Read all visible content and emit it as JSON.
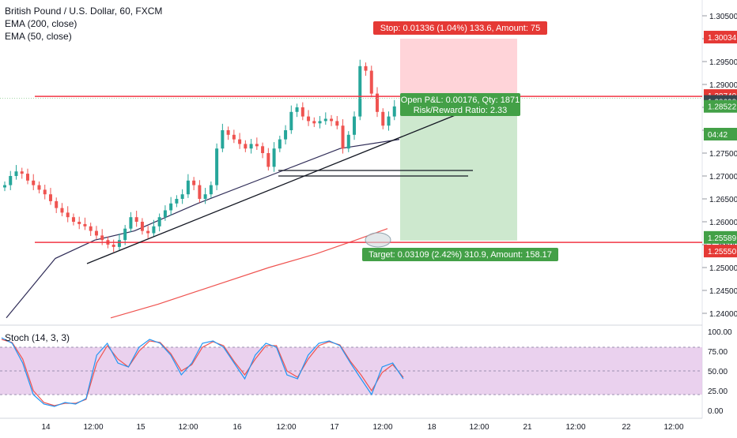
{
  "legend": {
    "title": "British Pound / U.S. Dollar, 60, FXCM",
    "ema200": "EMA (200, close)",
    "ema50": "EMA (50, close)"
  },
  "stoch_label": "Stoch (14, 3, 3)",
  "trade": {
    "stop_label": "Stop: 0.01336 (1.04%) 133.6, Amount: 75",
    "pnl_line1": "Open P&L: 0.00176, Qty: 1871",
    "pnl_line2": "Risk/Reward Ratio: 2.33",
    "target_label": "Target: 0.03109 (2.42%) 310.9, Amount: 158.17",
    "stop_price": 1.30034,
    "entry_price": 1.28698,
    "target_price": 1.25589
  },
  "price_badges": {
    "stop": "1.30034",
    "resistance": "1.28740",
    "entry": "1.28698",
    "last": "1.28522",
    "countdown": "04:42",
    "target": "1.25589",
    "support": "1.25550"
  },
  "horizontal_levels": {
    "resistance": 1.2874,
    "support": 1.2555
  },
  "colors": {
    "up": "#26a69a",
    "down": "#ef5350",
    "ema200": "#ef5350",
    "ema50": "#2f2c57",
    "stop_zone": "#ffcdd2",
    "target_zone": "#c8e6c9",
    "stoch_k": "#2196f3",
    "stoch_d": "#ef5350",
    "stoch_band": "#e1bee7",
    "badge_red": "#e53935",
    "badge_green": "#43a047",
    "badge_dark": "#37474f"
  },
  "chart_data": [
    {
      "type": "candlestick",
      "title": "British Pound / U.S. Dollar, 60, FXCM",
      "ylim": [
        1.238,
        1.3065
      ],
      "y_ticks": [
        "1.30500",
        "1.30000",
        "1.29500",
        "1.29000",
        "1.28500",
        "1.28000",
        "1.27500",
        "1.27000",
        "1.26500",
        "1.26000",
        "1.25500",
        "1.25000",
        "1.24500",
        "1.24000"
      ],
      "x_ticks": [
        "14",
        "12:00",
        "15",
        "12:00",
        "16",
        "12:00",
        "17",
        "12:00",
        "18",
        "12:00",
        "21",
        "12:00",
        "22",
        "12:00"
      ],
      "ohlc_closes": [
        1.268,
        1.27,
        1.271,
        1.2705,
        1.269,
        1.268,
        1.267,
        1.266,
        1.2645,
        1.263,
        1.262,
        1.261,
        1.26,
        1.2595,
        1.259,
        1.258,
        1.257,
        1.256,
        1.255,
        1.2545,
        1.256,
        1.2585,
        1.261,
        1.26,
        1.258,
        1.2575,
        1.259,
        1.261,
        1.2625,
        1.264,
        1.265,
        1.266,
        1.269,
        1.268,
        1.265,
        1.266,
        1.268,
        1.276,
        1.28,
        1.279,
        1.278,
        1.277,
        1.276,
        1.277,
        1.2765,
        1.275,
        1.272,
        1.276,
        1.278,
        1.28,
        1.284,
        1.285,
        1.283,
        1.282,
        1.2815,
        1.282,
        1.2825,
        1.282,
        1.281,
        1.276,
        1.279,
        1.283,
        1.294,
        1.293,
        1.288,
        1.284,
        1.281,
        1.283,
        1.2852
      ],
      "series": [
        {
          "name": "EMA (200, close)",
          "values": [
            1.239,
            1.242,
            1.246,
            1.25,
            1.253,
            1.256,
            1.2585
          ]
        },
        {
          "name": "EMA (50, close)",
          "values": [
            1.239,
            1.252,
            1.256,
            1.258,
            1.264,
            1.27,
            1.276,
            1.278
          ]
        }
      ]
    },
    {
      "type": "line",
      "title": "Stoch (14, 3, 3)",
      "ylim": [
        0,
        100
      ],
      "y_ticks": [
        "100.00",
        "75.00",
        "50.00",
        "25.00",
        "0.00"
      ],
      "band": [
        20,
        80
      ],
      "series": [
        {
          "name": "%K",
          "values": [
            92,
            85,
            60,
            20,
            8,
            5,
            10,
            8,
            15,
            70,
            85,
            60,
            55,
            80,
            90,
            85,
            70,
            45,
            60,
            85,
            88,
            80,
            60,
            40,
            70,
            85,
            80,
            45,
            40,
            70,
            85,
            88,
            82,
            60,
            40,
            20,
            55,
            60,
            40
          ]
        },
        {
          "name": "%D",
          "values": [
            90,
            86,
            65,
            25,
            10,
            6,
            9,
            9,
            14,
            60,
            82,
            65,
            55,
            75,
            88,
            86,
            72,
            50,
            58,
            80,
            87,
            82,
            62,
            45,
            65,
            82,
            82,
            50,
            42,
            65,
            82,
            87,
            83,
            62,
            45,
            25,
            48,
            58,
            42
          ]
        }
      ]
    }
  ]
}
